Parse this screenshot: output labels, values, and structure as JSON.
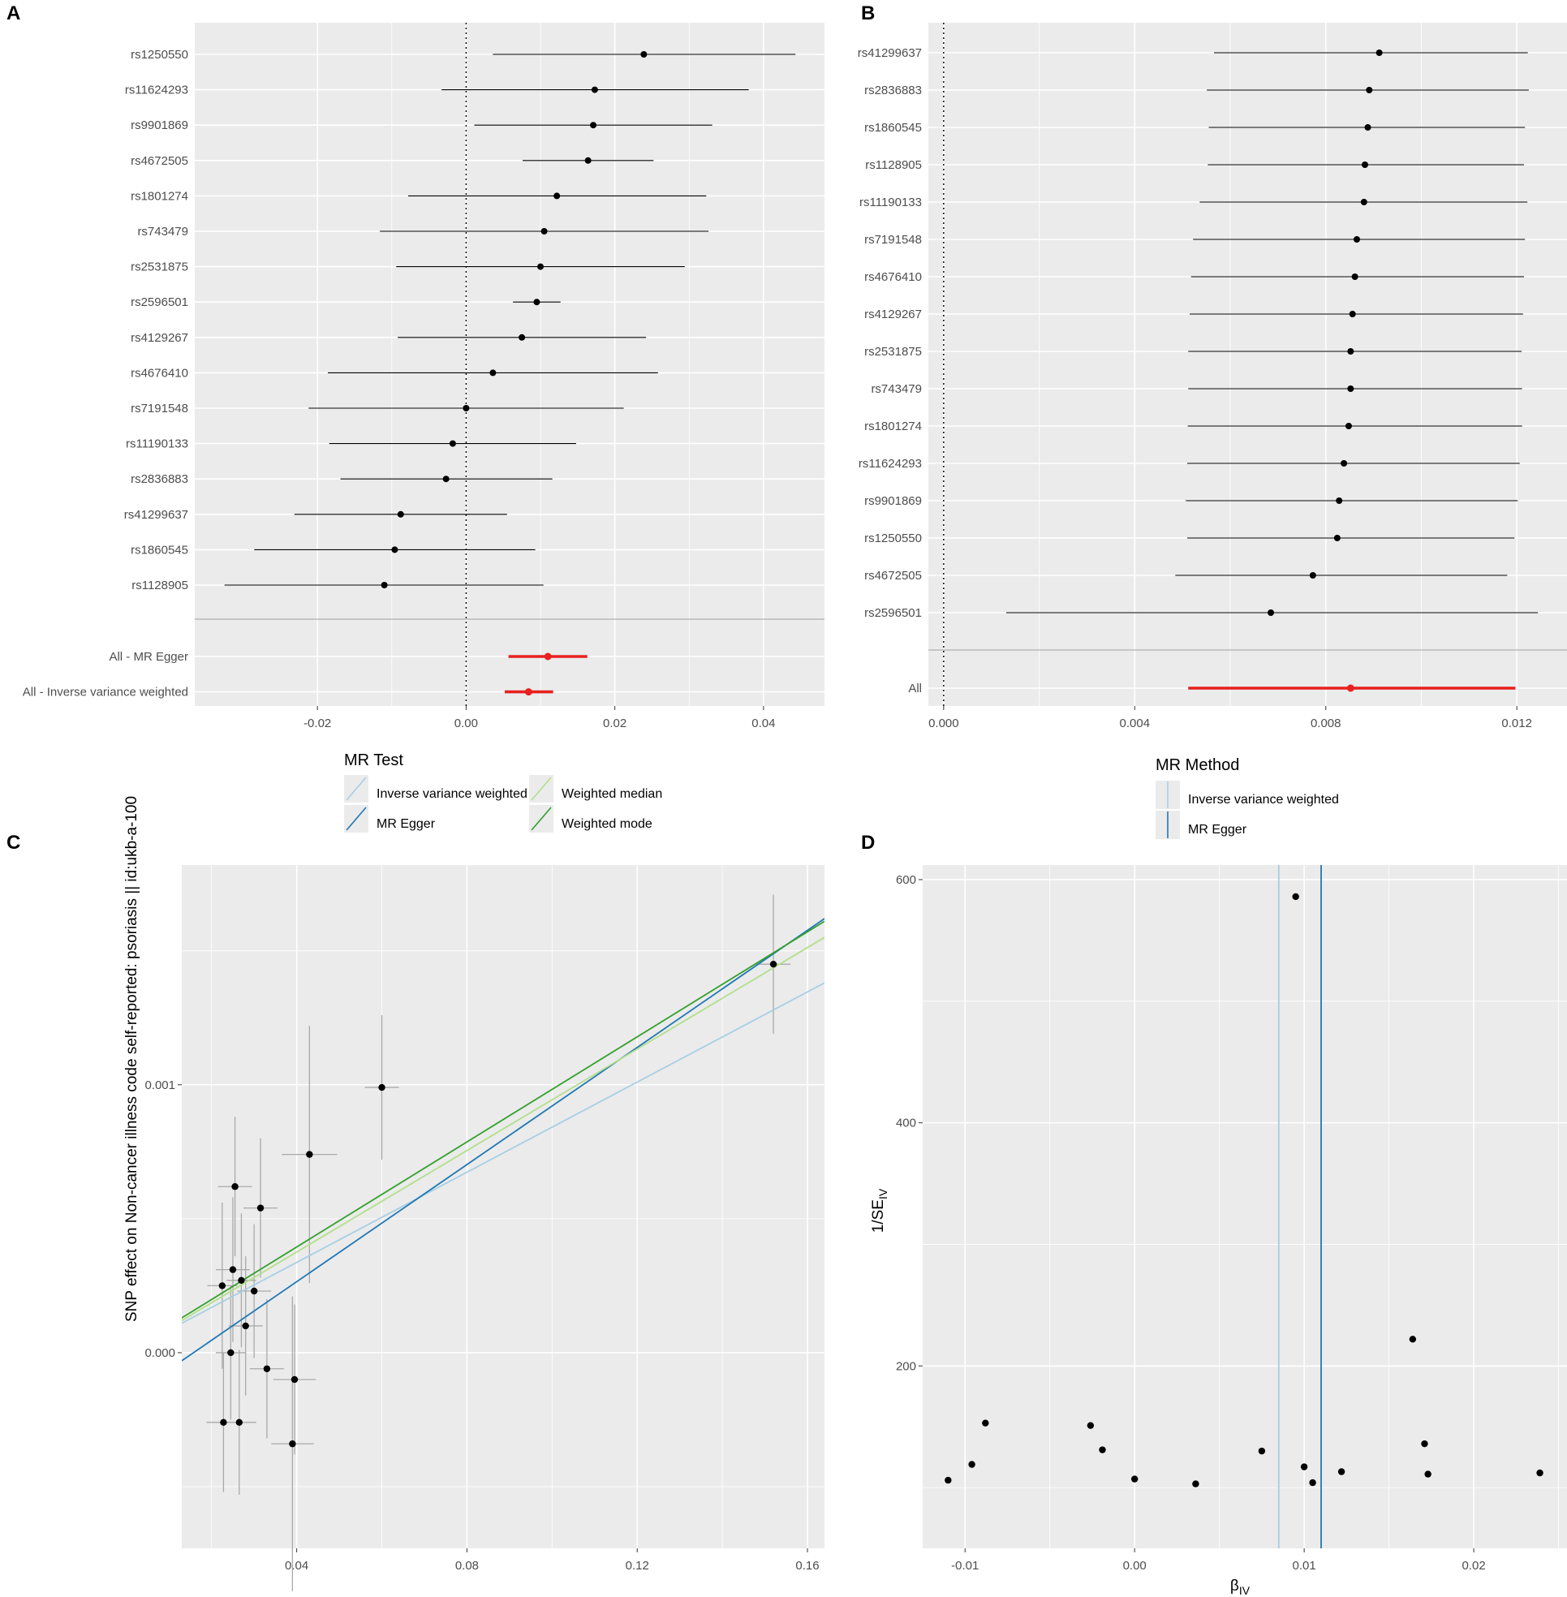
{
  "colors": {
    "panel_bg": "#ebebeb",
    "grid": "#ffffff",
    "point": "#000000",
    "summary": "#e8201f",
    "ivw": "#a6cee3",
    "mr_egger": "#1f78b4",
    "weighted_median": "#b2df8a",
    "weighted_mode": "#33a02c",
    "errbar_c": "#a9a9a9"
  },
  "chart_data": [
    {
      "panel": "A",
      "type": "forest",
      "snps": [
        "rs1250550",
        "rs11624293",
        "rs9901869",
        "rs4672505",
        "rs1801274",
        "rs743479",
        "rs2531875",
        "rs2596501",
        "rs4129267",
        "rs4676410",
        "rs7191548",
        "rs11190133",
        "rs2836883",
        "rs41299637",
        "rs1860545",
        "rs1128905"
      ],
      "estimates": [
        0.0239,
        0.0173,
        0.0171,
        0.0164,
        0.0122,
        0.0105,
        0.01,
        0.0095,
        0.0075,
        0.0036,
        0.0,
        -0.0018,
        -0.0027,
        -0.0088,
        -0.0096,
        -0.011
      ],
      "lower": [
        0.0036,
        -0.0033,
        0.0011,
        0.0076,
        -0.0078,
        -0.0116,
        -0.0094,
        0.0063,
        -0.0092,
        -0.0186,
        -0.0212,
        -0.0184,
        -0.0169,
        -0.0231,
        -0.0285,
        -0.0325
      ],
      "upper": [
        0.0443,
        0.038,
        0.0331,
        0.0252,
        0.0323,
        0.0326,
        0.0294,
        0.0127,
        0.0242,
        0.0258,
        0.0212,
        0.0148,
        0.0116,
        0.0055,
        0.0093,
        0.0104
      ],
      "summary": [
        {
          "label": "All - MR Egger",
          "estimate": 0.011,
          "lower": 0.0057,
          "upper": 0.0163
        },
        {
          "label": "All - Inverse variance weighted",
          "estimate": 0.0084,
          "lower": 0.0052,
          "upper": 0.0117
        }
      ],
      "xticks": [
        -0.02,
        0.0,
        0.02,
        0.04
      ],
      "xtick_labels": [
        "-0.02",
        "0.00",
        "0.02",
        "0.04"
      ],
      "xlim": [
        -0.0365,
        0.0482
      ],
      "reference_line": 0.0
    },
    {
      "panel": "B",
      "type": "forest",
      "snps": [
        "rs41299637",
        "rs2836883",
        "rs1860545",
        "rs1128905",
        "rs11190133",
        "rs7191548",
        "rs4676410",
        "rs4129267",
        "rs2531875",
        "rs743479",
        "rs1801274",
        "rs11624293",
        "rs9901869",
        "rs1250550",
        "rs4672505",
        "rs2596501"
      ],
      "estimates": [
        0.00912,
        0.00891,
        0.00888,
        0.00882,
        0.0088,
        0.00865,
        0.00861,
        0.00856,
        0.00852,
        0.00852,
        0.00848,
        0.00838,
        0.00828,
        0.00824,
        0.00773,
        0.00685
      ],
      "lower": [
        0.00566,
        0.00551,
        0.00555,
        0.00553,
        0.00536,
        0.00522,
        0.00518,
        0.00515,
        0.00512,
        0.00512,
        0.00511,
        0.0051,
        0.00507,
        0.0051,
        0.00485,
        0.00131
      ],
      "upper": [
        0.01223,
        0.01225,
        0.01217,
        0.01215,
        0.01222,
        0.01217,
        0.01215,
        0.01213,
        0.0121,
        0.01211,
        0.01211,
        0.01206,
        0.01202,
        0.01195,
        0.0118,
        0.01244
      ],
      "summary": [
        {
          "label": "All",
          "estimate": 0.00852,
          "lower": 0.00512,
          "upper": 0.01197
        }
      ],
      "xticks": [
        0.0,
        0.004,
        0.008,
        0.012
      ],
      "xtick_labels": [
        "0.000",
        "0.004",
        "0.008",
        "0.012"
      ],
      "xlim": [
        -0.00032,
        0.01305
      ],
      "reference_line": 0.0
    },
    {
      "panel": "C",
      "type": "scatter",
      "ylabel": "SNP effect on Non-cancer illness code  self-reported: psoriasis || id:ukb-a-100",
      "xticks": [
        0.04,
        0.08,
        0.12,
        0.16
      ],
      "xtick_labels": [
        "0.04",
        "0.08",
        "0.12",
        "0.16"
      ],
      "yticks": [
        0.0,
        0.001
      ],
      "ytick_labels": [
        "0.000",
        "0.001"
      ],
      "xlim": [
        0.013,
        0.164
      ],
      "ylim": [
        -0.00073,
        0.00182
      ],
      "points": [
        {
          "x": 0.0225,
          "y": 0.00025,
          "xerr": 0.0035,
          "yerr": 0.00031
        },
        {
          "x": 0.025,
          "y": 0.00031,
          "xerr": 0.004,
          "yerr": 0.00027
        },
        {
          "x": 0.0255,
          "y": 0.00062,
          "xerr": 0.004,
          "yerr": 0.00026
        },
        {
          "x": 0.0245,
          "y": 0.0,
          "xerr": 0.0035,
          "yerr": 0.00025
        },
        {
          "x": 0.0228,
          "y": -0.00026,
          "xerr": 0.004,
          "yerr": 0.00026
        },
        {
          "x": 0.027,
          "y": 0.00027,
          "xerr": 0.0035,
          "yerr": 0.00025
        },
        {
          "x": 0.028,
          "y": 0.0001,
          "xerr": 0.004,
          "yerr": 0.00026
        },
        {
          "x": 0.0265,
          "y": -0.00026,
          "xerr": 0.004,
          "yerr": 0.00027
        },
        {
          "x": 0.03,
          "y": 0.00023,
          "xerr": 0.004,
          "yerr": 0.00025
        },
        {
          "x": 0.0315,
          "y": 0.00054,
          "xerr": 0.004,
          "yerr": 0.00026
        },
        {
          "x": 0.033,
          "y": -6e-05,
          "xerr": 0.004,
          "yerr": 0.00026
        },
        {
          "x": 0.0395,
          "y": -0.0001,
          "xerr": 0.005,
          "yerr": 0.00028
        },
        {
          "x": 0.039,
          "y": -0.00034,
          "xerr": 0.005,
          "yerr": 0.00055
        },
        {
          "x": 0.043,
          "y": 0.00074,
          "xerr": 0.0065,
          "yerr": 0.00048
        },
        {
          "x": 0.06,
          "y": 0.00099,
          "xerr": 0.004,
          "yerr": 0.00027
        },
        {
          "x": 0.152,
          "y": 0.00145,
          "xerr": 0.004,
          "yerr": 0.00026
        }
      ],
      "lines": [
        {
          "name": "Inverse variance weighted",
          "x0": 0.013,
          "y0": 0.00011,
          "x1": 0.164,
          "y1": 0.00138,
          "color": "#a6cee3"
        },
        {
          "name": "MR Egger",
          "x0": 0.013,
          "y0": -3e-05,
          "x1": 0.164,
          "y1": 0.00162,
          "color": "#1f78b4"
        },
        {
          "name": "Weighted median",
          "x0": 0.013,
          "y0": 0.00012,
          "x1": 0.164,
          "y1": 0.00155,
          "color": "#b2df8a"
        },
        {
          "name": "Weighted mode",
          "x0": 0.013,
          "y0": 0.00013,
          "x1": 0.164,
          "y1": 0.00161,
          "color": "#33a02c"
        }
      ]
    },
    {
      "panel": "D",
      "type": "funnel",
      "xlabel_main": "β",
      "xlabel_sub": "IV",
      "ylabel_main": "1/SE",
      "ylabel_sub": "IV",
      "xticks": [
        -0.01,
        0.0,
        0.01,
        0.02
      ],
      "xtick_labels": [
        "-0.01",
        "0.00",
        "0.01",
        "0.02"
      ],
      "yticks": [
        200,
        400,
        600
      ],
      "ytick_labels": [
        "200",
        "400",
        "600"
      ],
      "xlim": [
        -0.0125,
        0.0255
      ],
      "ylim": [
        50,
        612
      ],
      "points": [
        {
          "x": -0.011,
          "y": 106
        },
        {
          "x": -0.0096,
          "y": 119
        },
        {
          "x": -0.0088,
          "y": 153
        },
        {
          "x": -0.0026,
          "y": 151
        },
        {
          "x": -0.0019,
          "y": 131
        },
        {
          "x": 0.0,
          "y": 107
        },
        {
          "x": 0.0036,
          "y": 103
        },
        {
          "x": 0.0075,
          "y": 130
        },
        {
          "x": 0.0095,
          "y": 586
        },
        {
          "x": 0.01,
          "y": 117
        },
        {
          "x": 0.0105,
          "y": 104
        },
        {
          "x": 0.0122,
          "y": 113
        },
        {
          "x": 0.0164,
          "y": 222
        },
        {
          "x": 0.0171,
          "y": 136
        },
        {
          "x": 0.0173,
          "y": 111
        },
        {
          "x": 0.0239,
          "y": 112
        }
      ],
      "vlines": [
        {
          "name": "Inverse variance weighted",
          "x": 0.0085,
          "color": "#a6cee3"
        },
        {
          "name": "MR Egger",
          "x": 0.011,
          "color": "#1f78b4"
        }
      ]
    }
  ],
  "legends": {
    "A": {
      "title": "MR Test",
      "items": [
        "Inverse variance weighted",
        "MR Egger",
        "Weighted median",
        "Weighted mode"
      ]
    },
    "B": {
      "title": "MR Method",
      "items": [
        "Inverse variance weighted",
        "MR Egger"
      ]
    }
  },
  "panel_labels": [
    "A",
    "B",
    "C",
    "D"
  ]
}
